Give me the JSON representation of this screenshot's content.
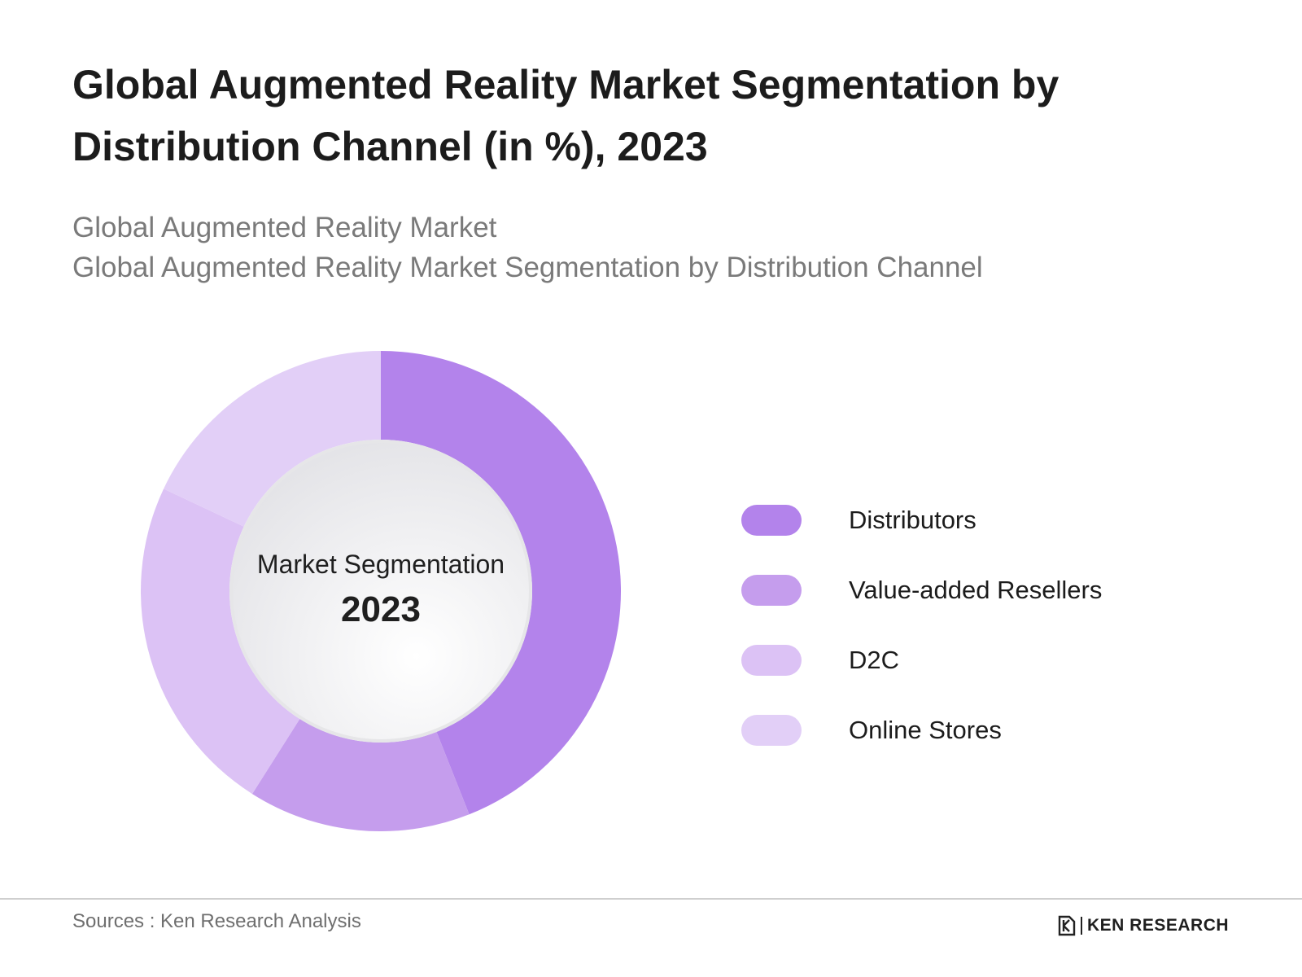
{
  "title": "Global Augmented Reality Market Segmentation by Distribution Channel (in %), 2023",
  "subtitle_line1": "Global Augmented Reality Market",
  "subtitle_line2": "Global Augmented Reality Market Segmentation by Distribution Channel",
  "center": {
    "label": "Market Segmentation",
    "year": "2023"
  },
  "chart_data": {
    "type": "pie",
    "variant": "donut",
    "title": "Global Augmented Reality Market Segmentation by Distribution Channel (in %), 2023",
    "categories": [
      "Distributors",
      "Value-added Resellers",
      "D2C",
      "Online Stores"
    ],
    "values": [
      44,
      15,
      23,
      18
    ],
    "unit": "%",
    "colors": [
      "#b383eb",
      "#c59ded",
      "#dcc2f5",
      "#e2cff7"
    ],
    "legend_position": "right"
  },
  "footer": {
    "source": "Sources : Ken Research Analysis",
    "brand": "KEN RESEARCH"
  }
}
